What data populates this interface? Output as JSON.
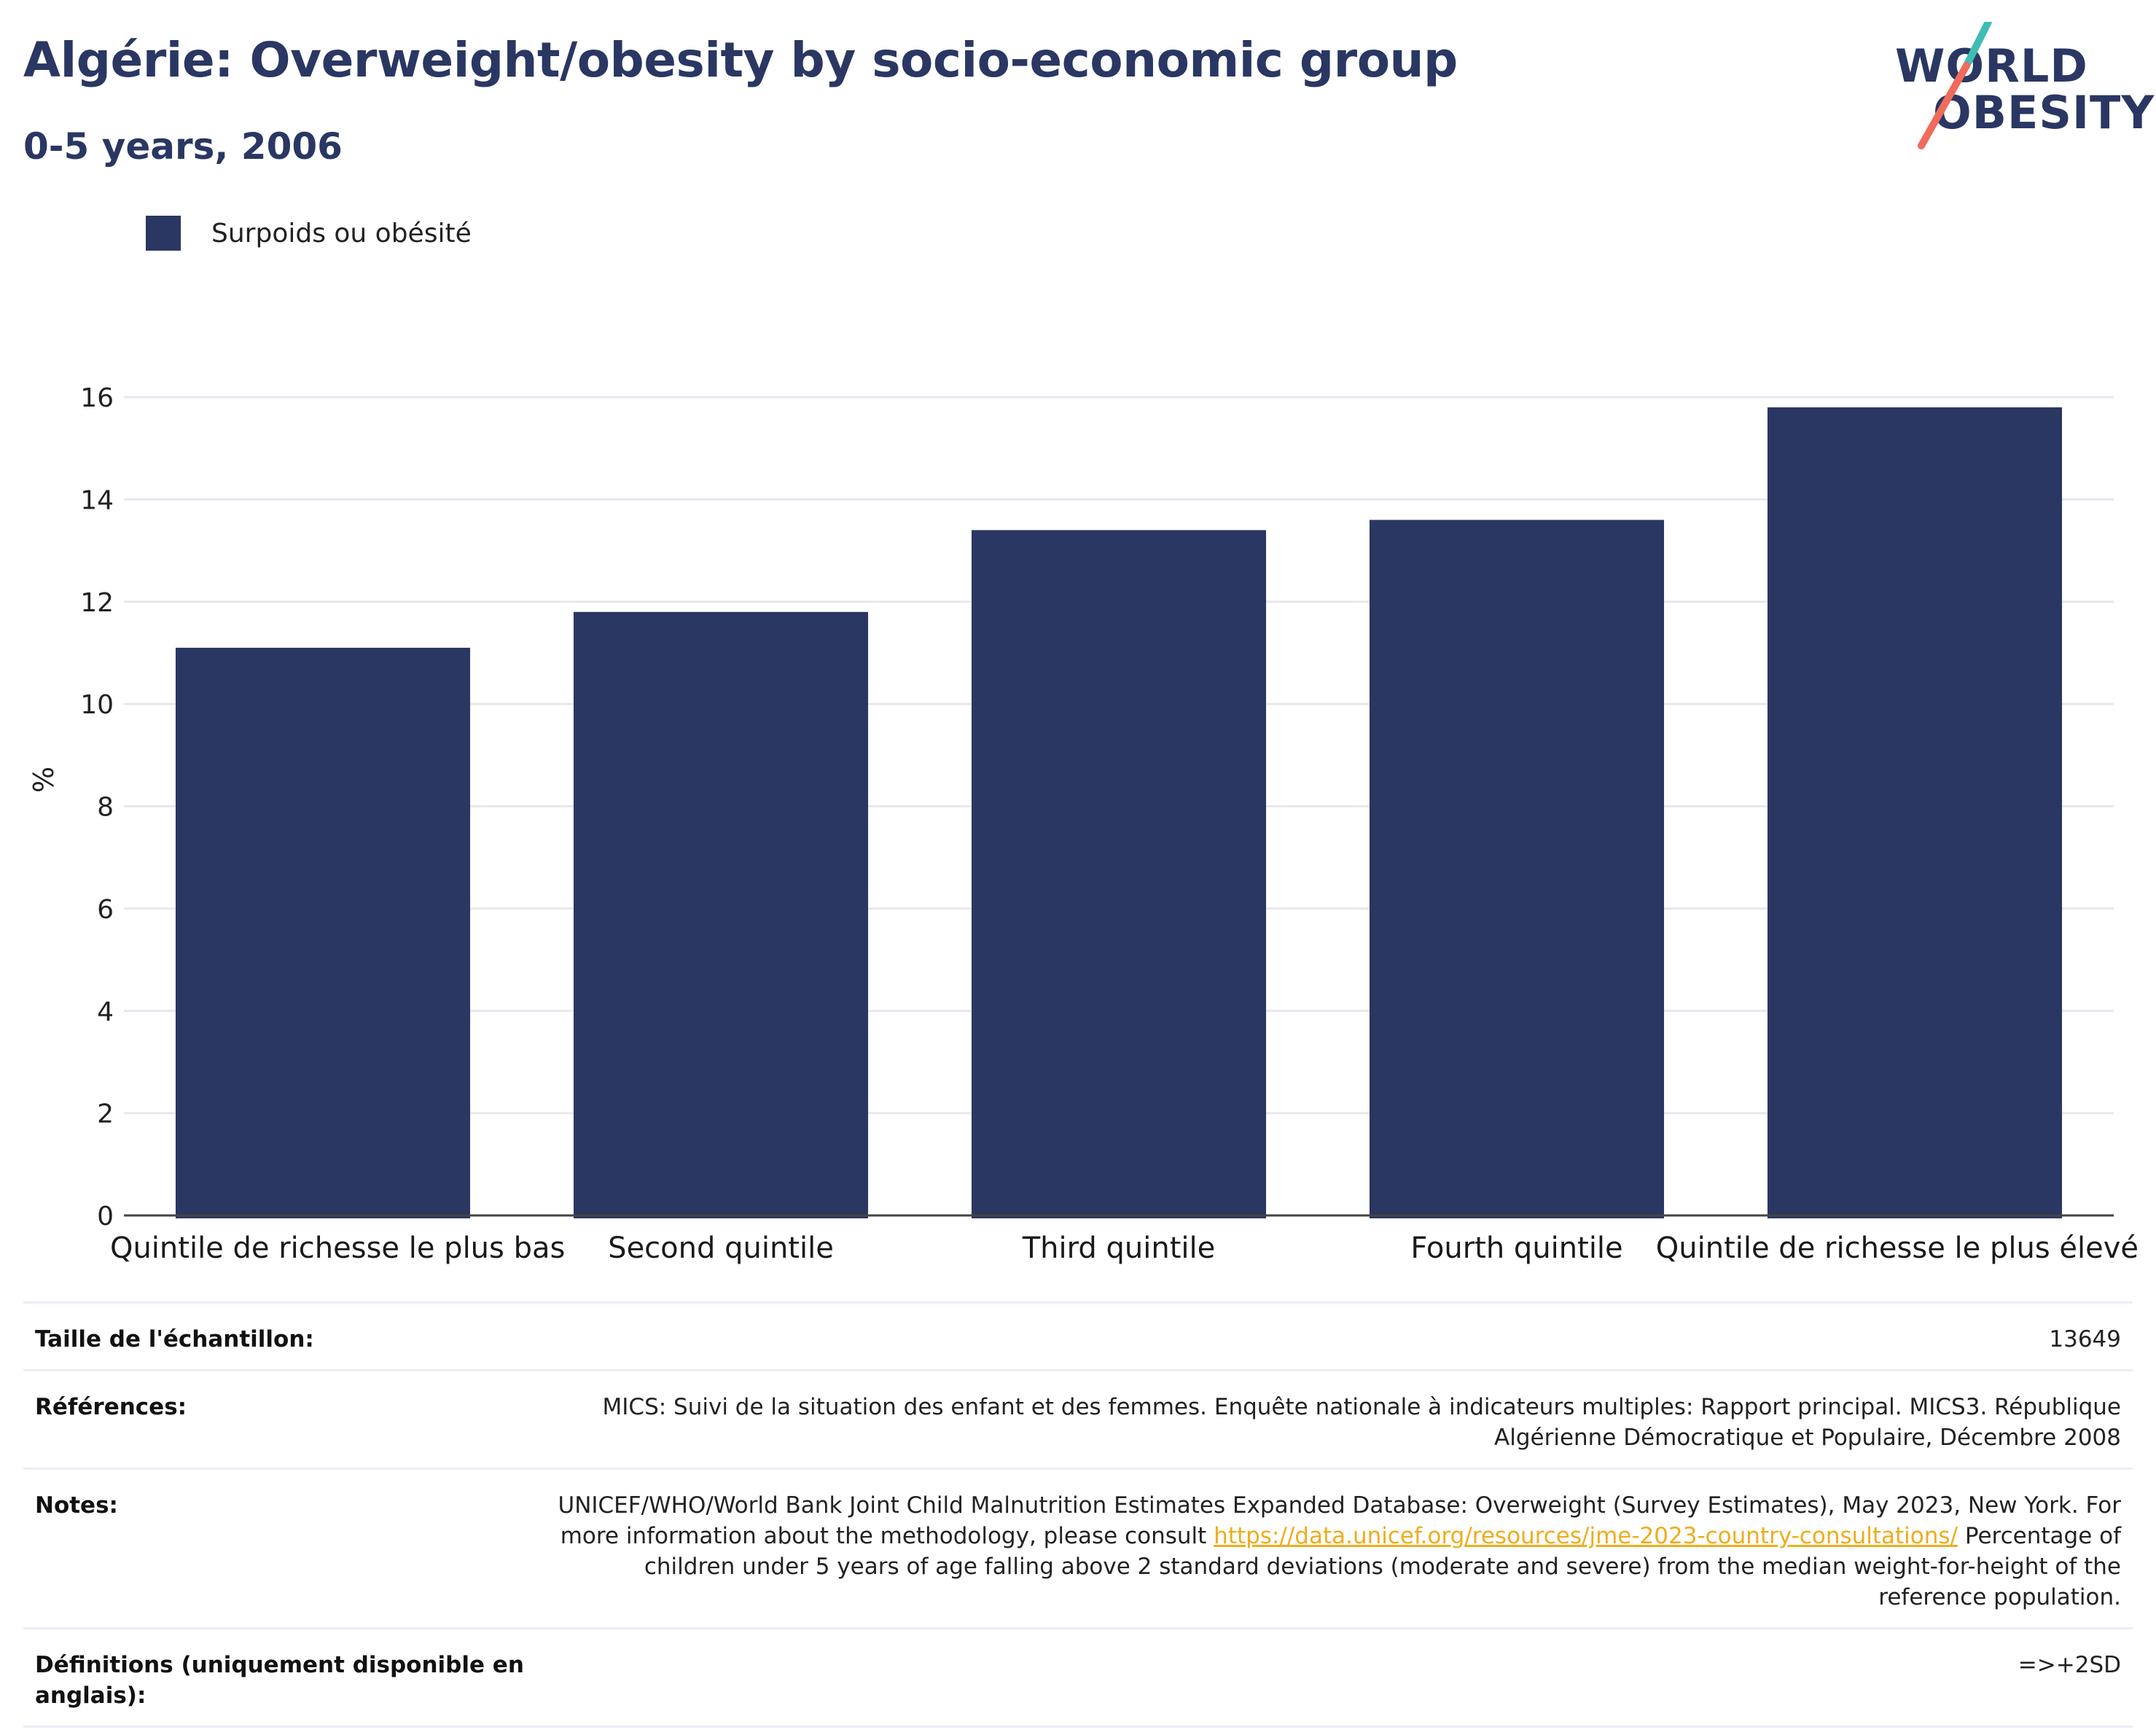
{
  "header": {
    "title": "Algérie: Overweight/obesity by socio-economic group",
    "subtitle": "0-5 years, 2006"
  },
  "logo": {
    "line1": "WORLD",
    "line2": "OBESITY",
    "brand_color": "#2a3763",
    "accent_teal": "#3fbdb3",
    "accent_coral": "#ef6b5b"
  },
  "chart_data": {
    "type": "bar",
    "categories": [
      "Quintile de richesse le plus bas",
      "Second quintile",
      "Third quintile",
      "Fourth quintile",
      "Quintile de richesse le plus élevé"
    ],
    "series": [
      {
        "name": "Surpoids ou obésité",
        "values": [
          11.1,
          11.8,
          13.4,
          13.6,
          15.8
        ],
        "color": "#2a3763"
      }
    ],
    "ylabel": "%",
    "xlabel": "",
    "ylim": [
      0,
      16
    ],
    "yticks": [
      0,
      2,
      4,
      6,
      8,
      10,
      12,
      14,
      16
    ],
    "grid": true,
    "legend_position": "top-left"
  },
  "info_table": {
    "sample_size": {
      "label": "Taille de l'échantillon:",
      "value": "13649"
    },
    "references": {
      "label": "Références:",
      "value": "MICS: Suivi de la situation des enfant et des femmes. Enquête nationale à indicateurs multiples: Rapport principal. MICS3. République Algérienne Démocratique et Populaire, Décembre 2008"
    },
    "notes": {
      "label": "Notes:",
      "text_before": "UNICEF/WHO/World Bank Joint Child Malnutrition Estimates Expanded Database: Overweight (Survey Estimates), May 2023, New York. For more information about the methodology, please consult ",
      "link": "https://data.unicef.org/resources/jme-2023-country-consultations/",
      "text_after": " Percentage of children under 5 years of age falling above 2 standard deviations (moderate and severe) from the median weight-for-height of the reference population."
    },
    "definitions": {
      "label": "Définitions (uniquement disponible en anglais):",
      "value": "=>+2SD"
    }
  }
}
